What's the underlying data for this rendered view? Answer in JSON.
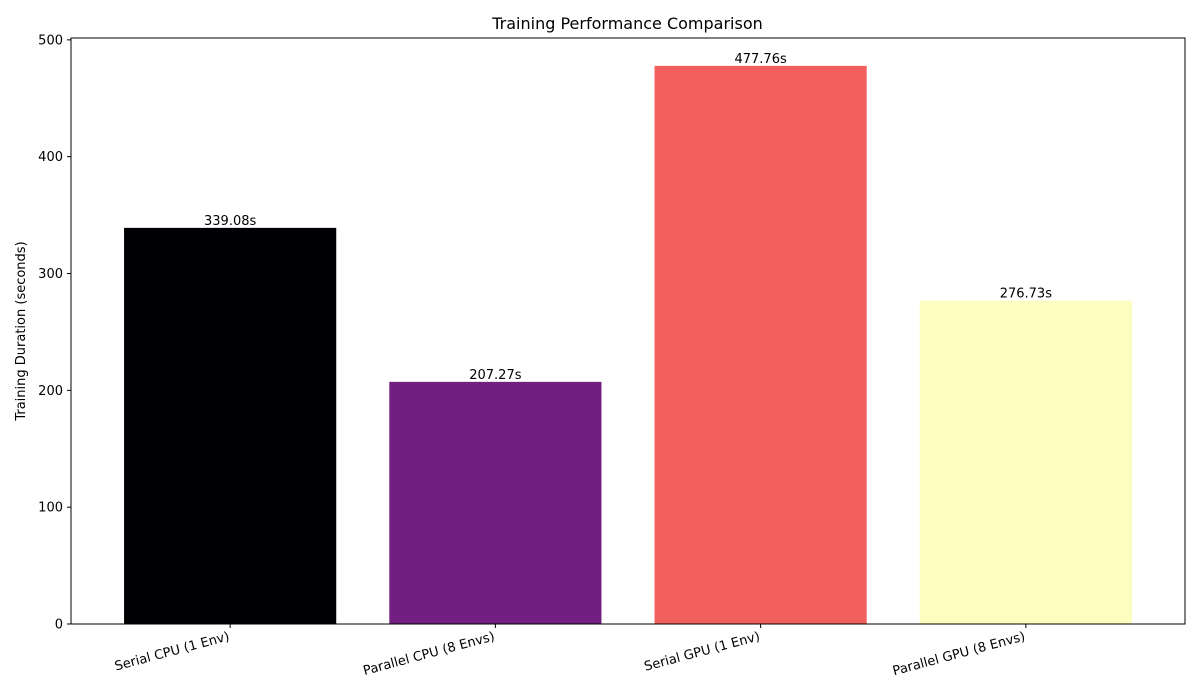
{
  "chart_data": {
    "type": "bar",
    "title": "Training Performance Comparison",
    "xlabel": "",
    "ylabel": "Training Duration (seconds)",
    "categories": [
      "Serial CPU (1 Env)",
      "Parallel CPU (8 Envs)",
      "Serial GPU (1 Env)",
      "Parallel GPU (8 Envs)"
    ],
    "values": [
      339.08,
      207.27,
      477.76,
      276.73
    ],
    "value_labels": [
      "339.08s",
      "207.27s",
      "477.76s",
      "276.73s"
    ],
    "colors": [
      "#000004",
      "#721f81",
      "#f1605d",
      "#fcfdbf"
    ],
    "ylim": [
      0,
      501.6
    ],
    "yticks": [
      0,
      100,
      200,
      300,
      400,
      500
    ],
    "ytick_labels": [
      "0",
      "100",
      "200",
      "300",
      "400",
      "500"
    ],
    "grid": false,
    "legend": "none"
  }
}
